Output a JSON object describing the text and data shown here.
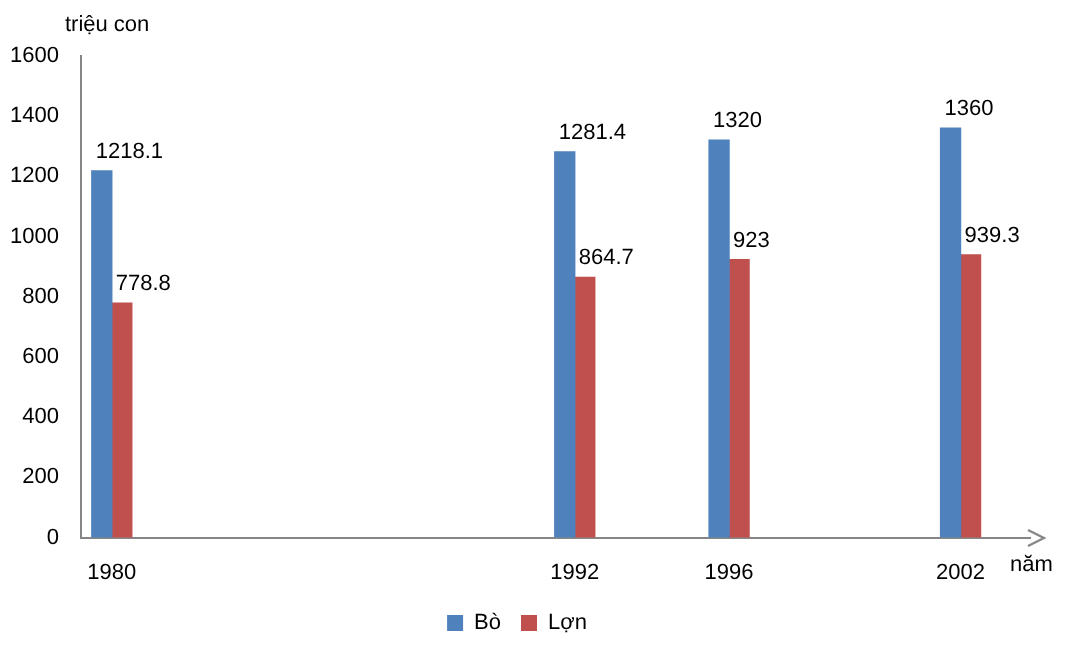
{
  "chart_data": {
    "type": "bar",
    "ylabel": "triệu con",
    "xlabel": "năm",
    "x": [
      1980,
      1992,
      1996,
      2002
    ],
    "series": [
      {
        "name": "Bò",
        "color": "#4f81bd",
        "values": [
          1218.1,
          1281.4,
          1320,
          1360
        ]
      },
      {
        "name": "Lợn",
        "color": "#c0504d",
        "values": [
          778.8,
          864.7,
          923,
          939.3
        ]
      }
    ],
    "xlim": [
      1979.2,
      2003.8
    ],
    "xticks": [
      1980,
      1992,
      1996,
      2002
    ],
    "ylim": [
      0,
      1600
    ],
    "yticks": [
      0,
      200,
      400,
      600,
      800,
      1000,
      1200,
      1400,
      1600
    ],
    "grid": false,
    "legend": "bottom",
    "data_labels": true
  }
}
